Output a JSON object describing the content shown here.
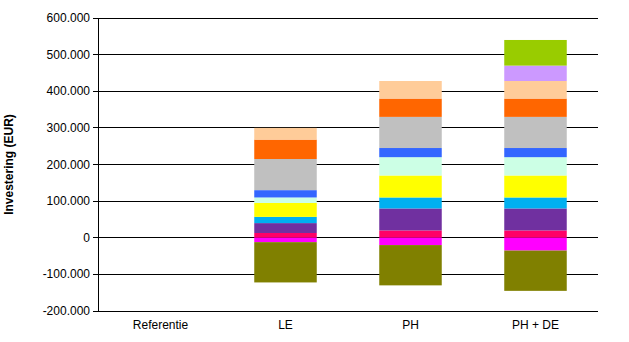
{
  "chart_data": {
    "type": "bar",
    "stacked": true,
    "grid": true,
    "ylabel": "Investering (EUR)",
    "categories": [
      "Referentie",
      "LE",
      "PH",
      "PH + DE"
    ],
    "ylim": [
      -200000,
      600000
    ],
    "yticks": [
      {
        "value": -200000,
        "label": "-200.000"
      },
      {
        "value": -100000,
        "label": "-100.000"
      },
      0,
      {
        "value": 100000,
        "label": "100.000"
      },
      {
        "value": 200000,
        "label": "200.000"
      },
      {
        "value": 300000,
        "label": "300.000"
      },
      {
        "value": 400000,
        "label": "400.000"
      },
      {
        "value": 500000,
        "label": "500.000"
      },
      {
        "value": 600000,
        "label": "600.000"
      }
    ],
    "series": [
      {
        "color": "#ff0066",
        "values": [
          0,
          13000,
          20000,
          20000
        ]
      },
      {
        "color": "#ff00ff",
        "values": [
          0,
          -12000,
          -20000,
          -35000
        ]
      },
      {
        "color": "#808000",
        "values": [
          0,
          -110000,
          -110000,
          -110000
        ]
      },
      {
        "color": "#7030a0",
        "values": [
          0,
          27000,
          60000,
          60000
        ]
      },
      {
        "color": "#00b0f0",
        "values": [
          0,
          17000,
          30000,
          30000
        ]
      },
      {
        "color": "#ffff00",
        "values": [
          0,
          38000,
          60000,
          60000
        ]
      },
      {
        "color": "#ccffe5",
        "values": [
          0,
          15000,
          50000,
          50000
        ]
      },
      {
        "color": "#3366ff",
        "values": [
          0,
          20000,
          25000,
          25000
        ]
      },
      {
        "color": "#c0c0c0",
        "values": [
          0,
          85000,
          85000,
          85000
        ]
      },
      {
        "color": "#ff6600",
        "values": [
          0,
          53000,
          50000,
          50000
        ]
      },
      {
        "color": "#ffcc99",
        "values": [
          0,
          32000,
          48000,
          48000
        ]
      },
      {
        "color": "#cc99ff",
        "values": [
          0,
          0,
          0,
          42000
        ]
      },
      {
        "color": "#99cc00",
        "values": [
          0,
          0,
          0,
          70000
        ]
      }
    ]
  }
}
